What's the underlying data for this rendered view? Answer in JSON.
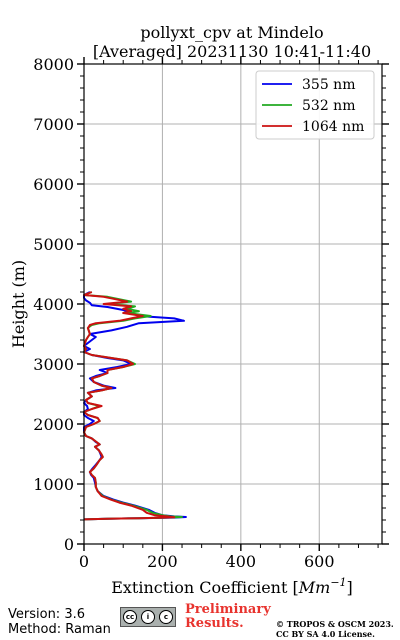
{
  "chart_data": {
    "type": "line",
    "title_line1": "pollyxt_cpv at Mindelo",
    "title_line2": "[Averaged] 20231130 10:41-11:40",
    "xlabel_prefix": "Extinction Coefficient [",
    "xlabel_unit_base": "Mm",
    "xlabel_unit_exp": "−1",
    "xlabel_suffix": "]",
    "ylabel": "Height (m)",
    "xlim": [
      0,
      760
    ],
    "ylim": [
      0,
      8000
    ],
    "xticks": [
      0,
      200,
      400,
      600
    ],
    "yticks": [
      0,
      1000,
      2000,
      3000,
      4000,
      5000,
      6000,
      7000,
      8000
    ],
    "grid": true,
    "legend_position": "top-right",
    "series": [
      {
        "name": "355 nm",
        "color": "#0000ee",
        "points": [
          [
            0,
            410
          ],
          [
            60,
            420
          ],
          [
            140,
            430
          ],
          [
            230,
            440
          ],
          [
            260,
            450
          ],
          [
            230,
            460
          ],
          [
            200,
            480
          ],
          [
            180,
            520
          ],
          [
            165,
            570
          ],
          [
            130,
            640
          ],
          [
            100,
            690
          ],
          [
            75,
            740
          ],
          [
            50,
            800
          ],
          [
            35,
            880
          ],
          [
            30,
            950
          ],
          [
            28,
            1020
          ],
          [
            25,
            1100
          ],
          [
            18,
            1150
          ],
          [
            15,
            1200
          ],
          [
            22,
            1260
          ],
          [
            30,
            1320
          ],
          [
            40,
            1400
          ],
          [
            45,
            1450
          ],
          [
            42,
            1500
          ],
          [
            38,
            1560
          ],
          [
            28,
            1620
          ],
          [
            40,
            1660
          ],
          [
            30,
            1700
          ],
          [
            20,
            1760
          ],
          [
            5,
            1800
          ],
          [
            0,
            1860
          ],
          [
            0,
            1950
          ],
          [
            15,
            2000
          ],
          [
            25,
            2050
          ],
          [
            10,
            2100
          ],
          [
            0,
            2150
          ],
          [
            0,
            2200
          ],
          [
            10,
            2250
          ],
          [
            8,
            2300
          ],
          [
            0,
            2350
          ],
          [
            5,
            2400
          ],
          [
            20,
            2460
          ],
          [
            10,
            2520
          ],
          [
            30,
            2560
          ],
          [
            80,
            2600
          ],
          [
            50,
            2640
          ],
          [
            25,
            2700
          ],
          [
            15,
            2760
          ],
          [
            30,
            2800
          ],
          [
            60,
            2850
          ],
          [
            40,
            2900
          ],
          [
            85,
            2950
          ],
          [
            120,
            3000
          ],
          [
            100,
            3060
          ],
          [
            60,
            3100
          ],
          [
            20,
            3150
          ],
          [
            0,
            3200
          ],
          [
            15,
            3250
          ],
          [
            0,
            3300
          ],
          [
            20,
            3400
          ],
          [
            30,
            3450
          ],
          [
            15,
            3500
          ],
          [
            70,
            3560
          ],
          [
            110,
            3620
          ],
          [
            140,
            3680
          ],
          [
            255,
            3720
          ],
          [
            230,
            3760
          ],
          [
            140,
            3800
          ],
          [
            120,
            3850
          ],
          [
            100,
            3900
          ],
          [
            60,
            3950
          ],
          [
            20,
            3980
          ],
          [
            15,
            4020
          ],
          [
            5,
            4060
          ],
          [
            0,
            4100
          ],
          [
            0,
            4150
          ],
          [
            15,
            4200
          ]
        ]
      },
      {
        "name": "532 nm",
        "color": "#22aa22",
        "points": [
          [
            0,
            410
          ],
          [
            60,
            420
          ],
          [
            140,
            430
          ],
          [
            210,
            440
          ],
          [
            250,
            450
          ],
          [
            220,
            460
          ],
          [
            200,
            480
          ],
          [
            175,
            520
          ],
          [
            160,
            570
          ],
          [
            125,
            640
          ],
          [
            95,
            690
          ],
          [
            70,
            740
          ],
          [
            48,
            800
          ],
          [
            35,
            880
          ],
          [
            30,
            950
          ],
          [
            30,
            1020
          ],
          [
            28,
            1100
          ],
          [
            20,
            1150
          ],
          [
            15,
            1200
          ],
          [
            25,
            1260
          ],
          [
            32,
            1320
          ],
          [
            40,
            1400
          ],
          [
            48,
            1450
          ],
          [
            44,
            1500
          ],
          [
            38,
            1560
          ],
          [
            28,
            1620
          ],
          [
            40,
            1660
          ],
          [
            32,
            1700
          ],
          [
            20,
            1760
          ],
          [
            5,
            1800
          ],
          [
            0,
            1860
          ],
          [
            5,
            1950
          ],
          [
            25,
            2000
          ],
          [
            40,
            2050
          ],
          [
            35,
            2100
          ],
          [
            10,
            2150
          ],
          [
            0,
            2200
          ],
          [
            20,
            2250
          ],
          [
            40,
            2300
          ],
          [
            10,
            2350
          ],
          [
            5,
            2400
          ],
          [
            20,
            2460
          ],
          [
            10,
            2520
          ],
          [
            45,
            2560
          ],
          [
            70,
            2600
          ],
          [
            45,
            2640
          ],
          [
            25,
            2700
          ],
          [
            20,
            2760
          ],
          [
            40,
            2800
          ],
          [
            60,
            2850
          ],
          [
            60,
            2900
          ],
          [
            100,
            2950
          ],
          [
            130,
            3000
          ],
          [
            110,
            3060
          ],
          [
            70,
            3100
          ],
          [
            20,
            3150
          ],
          [
            0,
            3200
          ],
          [
            5,
            3250
          ],
          [
            0,
            3300
          ],
          [
            5,
            3400
          ],
          [
            10,
            3450
          ],
          [
            15,
            3500
          ],
          [
            10,
            3600
          ],
          [
            20,
            3650
          ],
          [
            40,
            3680
          ],
          [
            100,
            3720
          ],
          [
            130,
            3760
          ],
          [
            170,
            3800
          ],
          [
            110,
            3850
          ],
          [
            140,
            3880
          ],
          [
            110,
            3920
          ],
          [
            130,
            3960
          ],
          [
            60,
            4000
          ],
          [
            120,
            4040
          ],
          [
            90,
            4080
          ],
          [
            60,
            4120
          ],
          [
            0,
            4150
          ],
          [
            20,
            4200
          ]
        ]
      },
      {
        "name": "1064 nm",
        "color": "#cc1111",
        "points": [
          [
            0,
            410
          ],
          [
            60,
            420
          ],
          [
            140,
            430
          ],
          [
            200,
            440
          ],
          [
            230,
            445
          ],
          [
            210,
            460
          ],
          [
            180,
            480
          ],
          [
            160,
            520
          ],
          [
            150,
            570
          ],
          [
            120,
            640
          ],
          [
            90,
            690
          ],
          [
            68,
            740
          ],
          [
            45,
            800
          ],
          [
            35,
            880
          ],
          [
            30,
            950
          ],
          [
            30,
            1020
          ],
          [
            28,
            1100
          ],
          [
            20,
            1150
          ],
          [
            15,
            1200
          ],
          [
            25,
            1260
          ],
          [
            32,
            1320
          ],
          [
            40,
            1400
          ],
          [
            48,
            1450
          ],
          [
            44,
            1500
          ],
          [
            38,
            1560
          ],
          [
            28,
            1620
          ],
          [
            40,
            1660
          ],
          [
            32,
            1700
          ],
          [
            20,
            1760
          ],
          [
            5,
            1800
          ],
          [
            0,
            1860
          ],
          [
            5,
            1950
          ],
          [
            25,
            2000
          ],
          [
            40,
            2050
          ],
          [
            35,
            2100
          ],
          [
            10,
            2150
          ],
          [
            0,
            2200
          ],
          [
            20,
            2250
          ],
          [
            45,
            2300
          ],
          [
            10,
            2350
          ],
          [
            5,
            2400
          ],
          [
            20,
            2460
          ],
          [
            10,
            2520
          ],
          [
            45,
            2560
          ],
          [
            70,
            2600
          ],
          [
            45,
            2640
          ],
          [
            25,
            2700
          ],
          [
            20,
            2760
          ],
          [
            40,
            2800
          ],
          [
            60,
            2850
          ],
          [
            60,
            2900
          ],
          [
            100,
            2950
          ],
          [
            125,
            3000
          ],
          [
            110,
            3060
          ],
          [
            70,
            3100
          ],
          [
            20,
            3150
          ],
          [
            0,
            3200
          ],
          [
            5,
            3250
          ],
          [
            0,
            3300
          ],
          [
            5,
            3400
          ],
          [
            10,
            3450
          ],
          [
            15,
            3500
          ],
          [
            10,
            3600
          ],
          [
            15,
            3650
          ],
          [
            30,
            3680
          ],
          [
            90,
            3720
          ],
          [
            120,
            3760
          ],
          [
            150,
            3800
          ],
          [
            100,
            3850
          ],
          [
            120,
            3880
          ],
          [
            100,
            3920
          ],
          [
            120,
            3960
          ],
          [
            50,
            4000
          ],
          [
            110,
            4040
          ],
          [
            80,
            4080
          ],
          [
            50,
            4120
          ],
          [
            0,
            4150
          ],
          [
            20,
            4200
          ]
        ]
      }
    ]
  },
  "footer": {
    "version": "Version: 3.6",
    "method": "Method: Raman",
    "license_badge": "cc by sa",
    "preliminary_line1": "Preliminary",
    "preliminary_line2": "Results.",
    "copyright_line1": "© TROPOS & OSCM 2023.",
    "copyright_line2": "CC BY SA 4.0 License."
  }
}
